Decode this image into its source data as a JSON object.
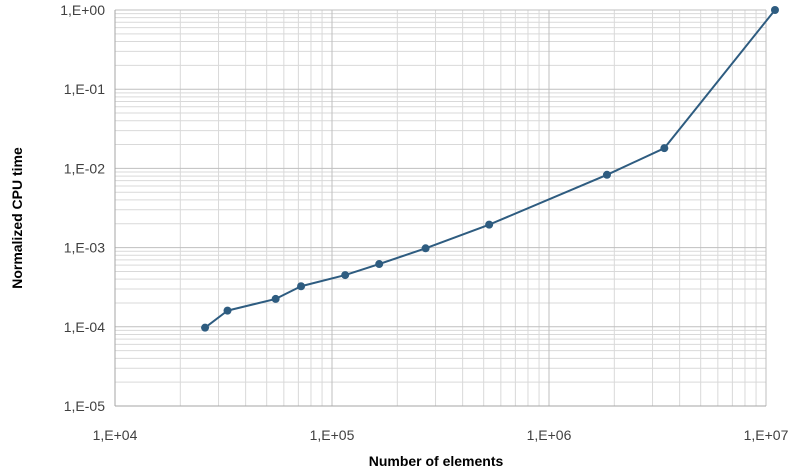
{
  "chart_data": {
    "type": "line",
    "title": "",
    "xlabel": "Number of elements",
    "ylabel": "Normalized CPU time",
    "xscale": "log",
    "yscale": "log",
    "xlim": [
      10000,
      10000000
    ],
    "ylim": [
      1e-05,
      1
    ],
    "x_tick_values": [
      10000,
      100000,
      1000000,
      10000000
    ],
    "x_tick_labels": [
      "1,E+04",
      "1,E+05",
      "1,E+06",
      "1,E+07"
    ],
    "y_tick_values": [
      1,
      0.1,
      0.01,
      0.001,
      0.0001,
      1e-05
    ],
    "y_tick_labels": [
      "1,E+00",
      "1,E-01",
      "1,E-02",
      "1,E-03",
      "1,E-04",
      "1,E-05"
    ],
    "grid": true,
    "legend": "none",
    "series": [
      {
        "x": [
          26000,
          33000,
          55000,
          72000,
          115000,
          165000,
          270000,
          530000,
          1850000,
          3400000,
          11000000
        ],
        "y": [
          9.75e-05,
          0.00016,
          0.000225,
          0.000325,
          0.00045,
          0.00062,
          0.00098,
          0.00195,
          0.0083,
          0.018,
          1.0
        ],
        "color": "#2e5c80"
      }
    ],
    "colors": {
      "line": "#2e5c80",
      "marker": "#2e5c80",
      "grid": "#d9d9d9",
      "tick_text": "#404040"
    }
  }
}
